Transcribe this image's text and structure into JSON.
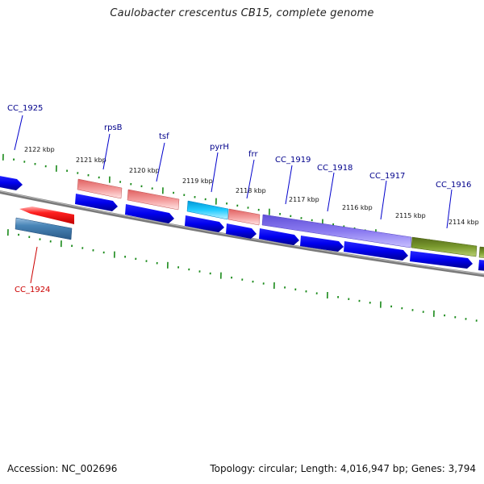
{
  "title": "Caulobacter crescentus CB15, complete genome",
  "footer": {
    "accession": "Accession: NC_002696",
    "summary": "Topology: circular; Length: 4,016,947 bp; Genes: 3,794"
  },
  "colors": {
    "backbone": "#808080",
    "tick": "#1a8a1a",
    "label_plus": "#00008b",
    "label_minus": "#cc0000",
    "cds": "#0000ee",
    "salmon": "#f08080",
    "cyan": "#00bfff",
    "purple": "#7b68ee",
    "olive": "#6b8e23",
    "red": "#ee0000",
    "steel": "#4682b4"
  },
  "scale_labels": [
    "2122 kbp",
    "2121 kbp",
    "2120 kbp",
    "2119 kbp",
    "2118 kbp",
    "2117 kbp",
    "2116 kbp",
    "2115 kbp",
    "2114 kbp"
  ],
  "gene_labels": [
    {
      "name": "CC_1925",
      "strand": "plus"
    },
    {
      "name": "rpsB",
      "strand": "plus"
    },
    {
      "name": "tsf",
      "strand": "plus"
    },
    {
      "name": "pyrH",
      "strand": "plus"
    },
    {
      "name": "frr",
      "strand": "plus"
    },
    {
      "name": "CC_1919",
      "strand": "plus"
    },
    {
      "name": "CC_1918",
      "strand": "plus"
    },
    {
      "name": "CC_1917",
      "strand": "plus"
    },
    {
      "name": "CC_1916",
      "strand": "plus"
    },
    {
      "name": "CC_1924",
      "strand": "minus"
    }
  ]
}
